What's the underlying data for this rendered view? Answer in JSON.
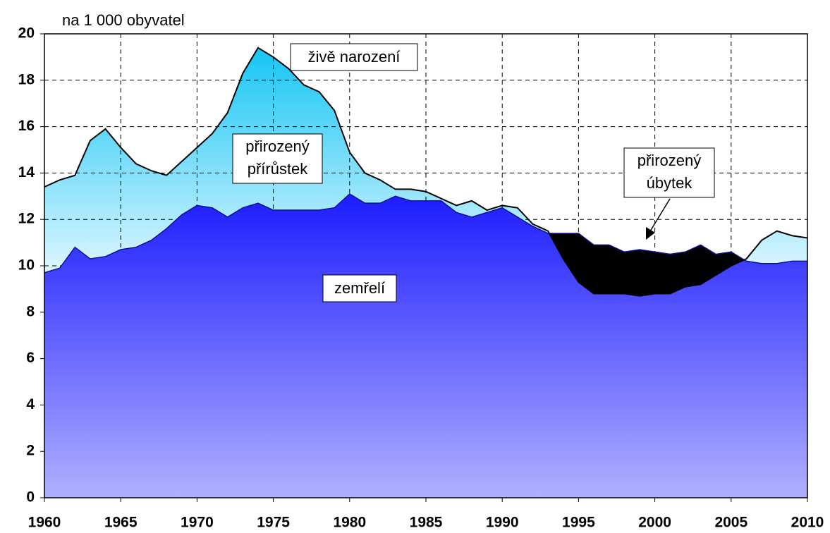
{
  "chart_data": {
    "type": "area",
    "ylabel": "na 1 000 obyvatel",
    "x": [
      1960,
      1961,
      1962,
      1963,
      1964,
      1965,
      1966,
      1967,
      1968,
      1969,
      1970,
      1971,
      1972,
      1973,
      1974,
      1975,
      1976,
      1977,
      1978,
      1979,
      1980,
      1981,
      1982,
      1983,
      1984,
      1985,
      1986,
      1987,
      1988,
      1989,
      1990,
      1991,
      1992,
      1993,
      1994,
      1995,
      1996,
      1997,
      1998,
      1999,
      2000,
      2001,
      2002,
      2003,
      2004,
      2005,
      2006,
      2007,
      2008,
      2009,
      2010
    ],
    "series": [
      {
        "name": "živě narození",
        "color": "#1ec8f0",
        "values": [
          13.4,
          13.7,
          13.9,
          15.4,
          15.9,
          15.1,
          14.4,
          14.1,
          13.9,
          14.5,
          15.1,
          15.7,
          16.6,
          18.3,
          19.4,
          19.0,
          18.5,
          17.8,
          17.5,
          16.7,
          14.9,
          14.0,
          13.7,
          13.3,
          13.3,
          13.2,
          12.9,
          12.6,
          12.8,
          12.4,
          12.6,
          12.5,
          11.8,
          11.5,
          10.3,
          9.3,
          8.8,
          8.8,
          8.8,
          8.7,
          8.8,
          8.8,
          9.1,
          9.2,
          9.6,
          10.0,
          10.3,
          11.1,
          11.5,
          11.3,
          11.2
        ]
      },
      {
        "name": "zemřelí",
        "color": "#2222ff",
        "values": [
          9.7,
          9.9,
          10.8,
          10.3,
          10.4,
          10.7,
          10.8,
          11.1,
          11.6,
          12.2,
          12.6,
          12.5,
          12.1,
          12.5,
          12.7,
          12.4,
          12.4,
          12.4,
          12.4,
          12.5,
          13.1,
          12.7,
          12.7,
          13.0,
          12.8,
          12.8,
          12.8,
          12.3,
          12.1,
          12.3,
          12.5,
          12.1,
          11.7,
          11.4,
          11.4,
          11.4,
          10.9,
          10.9,
          10.6,
          10.7,
          10.6,
          10.5,
          10.6,
          10.9,
          10.5,
          10.6,
          10.2,
          10.1,
          10.1,
          10.2,
          10.2
        ]
      }
    ],
    "annotations": [
      {
        "lines": [
          "přirozený",
          "přírůstek"
        ]
      },
      {
        "lines": [
          "přirozený",
          "úbytek"
        ]
      }
    ],
    "xlim": [
      1960,
      2010
    ],
    "xticks": [
      1960,
      1965,
      1970,
      1975,
      1980,
      1985,
      1990,
      1995,
      2000,
      2005,
      2010
    ],
    "ylim": [
      0,
      20
    ],
    "yticks": [
      0,
      2,
      4,
      6,
      8,
      10,
      12,
      14,
      16,
      18,
      20
    ],
    "grid": true
  }
}
